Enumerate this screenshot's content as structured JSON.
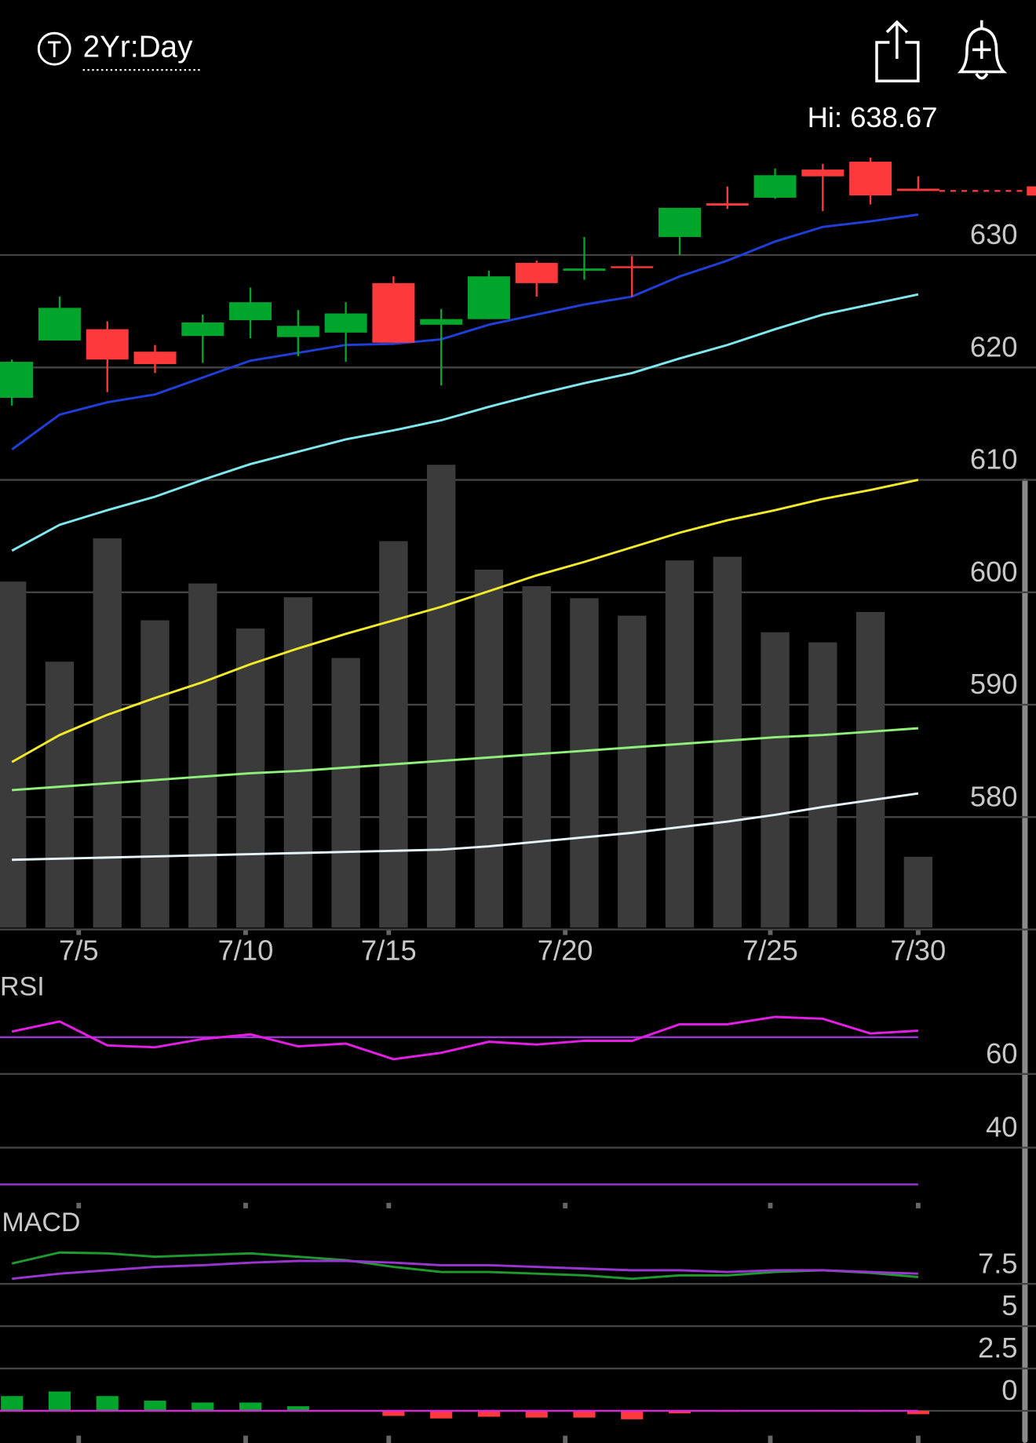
{
  "header": {
    "period": "2Yr:Day"
  },
  "chart_data": [
    {
      "type": "candlestick",
      "annotation": "Hi: 638.67",
      "categories": [
        null,
        null,
        null,
        null,
        null,
        null,
        null,
        null,
        null,
        null,
        null,
        null,
        null,
        null,
        null,
        null,
        null,
        null,
        null,
        null
      ],
      "open": [
        617.3,
        622.4,
        623.4,
        621.4,
        622.8,
        624.2,
        622.7,
        623.1,
        627.5,
        623.8,
        624.3,
        629.3,
        628.6,
        629.0,
        631.6,
        634.6,
        635.1,
        637.6,
        638.3,
        635.9
      ],
      "high": [
        620.7,
        626.3,
        624.1,
        622.0,
        624.7,
        627.1,
        625.1,
        625.8,
        628.1,
        625.2,
        628.6,
        629.5,
        631.6,
        629.9,
        634.2,
        636.1,
        637.7,
        638.1,
        638.67,
        637.0
      ],
      "low": [
        616.6,
        622.4,
        617.8,
        619.5,
        620.4,
        622.6,
        621.0,
        620.5,
        622.2,
        618.4,
        624.3,
        626.3,
        627.8,
        626.3,
        630.0,
        634.1,
        635.0,
        633.9,
        634.5,
        635.7
      ],
      "close": [
        620.5,
        625.3,
        620.7,
        620.3,
        624.0,
        625.8,
        623.7,
        624.8,
        622.2,
        624.3,
        628.1,
        627.5,
        628.8,
        628.9,
        634.2,
        634.4,
        637.1,
        637.0,
        635.3,
        635.7
      ],
      "up_color": "#00a62b",
      "down_color": "#fc3a3c",
      "last_price_line": true,
      "xlim": [
        -0.25,
        21.47
      ],
      "xticks": [
        {
          "value": 1.4,
          "label": "7/5"
        },
        {
          "value": 4.9,
          "label": "7/10"
        },
        {
          "value": 7.9,
          "label": "7/15"
        },
        {
          "value": 11.6,
          "label": "7/20"
        },
        {
          "value": 15.9,
          "label": "7/25"
        },
        {
          "value": 19.0,
          "label": "7/30"
        }
      ],
      "ylim": [
        570,
        644.5
      ],
      "yticks": [
        580,
        590,
        600,
        610,
        620,
        630
      ],
      "grid": true,
      "series": [
        {
          "color": "#1f3fd8",
          "values": [
            612.7,
            615.8,
            616.9,
            617.6,
            619.1,
            620.6,
            621.3,
            622.0,
            622.1,
            622.5,
            623.8,
            624.7,
            625.6,
            626.3,
            628.1,
            629.5,
            631.2,
            632.5,
            633.0,
            633.6
          ]
        },
        {
          "color": "#7fe8ee",
          "values": [
            603.7,
            606.0,
            607.3,
            608.5,
            610.0,
            611.4,
            612.5,
            613.6,
            614.4,
            615.3,
            616.5,
            617.6,
            618.6,
            619.5,
            620.8,
            622.0,
            623.4,
            624.7,
            625.6,
            626.5
          ]
        },
        {
          "color": "#f2e92a",
          "values": [
            584.9,
            587.3,
            589.1,
            590.6,
            592.0,
            593.6,
            595.0,
            596.3,
            597.5,
            598.7,
            600.1,
            601.5,
            602.7,
            604.0,
            605.3,
            606.4,
            607.3,
            608.3,
            609.1,
            610.0
          ]
        },
        {
          "color": "#8ff07a",
          "values": [
            582.4,
            582.7,
            583.0,
            583.3,
            583.6,
            583.9,
            584.1,
            584.4,
            584.7,
            585.0,
            585.3,
            585.6,
            585.9,
            586.2,
            586.5,
            586.8,
            587.1,
            587.3,
            587.6,
            587.9
          ]
        },
        {
          "color": "#e6f4f8",
          "values": [
            576.2,
            576.3,
            576.4,
            576.5,
            576.6,
            576.7,
            576.8,
            576.9,
            577.0,
            577.1,
            577.4,
            577.8,
            578.2,
            578.6,
            579.1,
            579.6,
            580.2,
            580.9,
            581.5,
            582.1
          ]
        }
      ],
      "volume": {
        "color": "#3b3b3b",
        "values": [
          376,
          289,
          423,
          334,
          374,
          325,
          359,
          293,
          420,
          503,
          389,
          371,
          358,
          339,
          399,
          403,
          321,
          310,
          343,
          77
        ]
      }
    },
    {
      "type": "line",
      "title": "RSI",
      "ylim": [
        25,
        87
      ],
      "yticks": [
        40,
        60
      ],
      "grid": true,
      "levels": [
        70,
        30
      ],
      "level_color": "#9a35d2",
      "series": [
        {
          "color": "#e41ee6",
          "values": [
            71.5,
            74.25,
            67.75,
            67.25,
            69.5,
            70.75,
            67.5,
            68.25,
            64,
            65.75,
            68.75,
            68,
            69,
            69,
            73.5,
            73.5,
            75.5,
            75,
            71,
            71.75
          ]
        }
      ]
    },
    {
      "type": "macd",
      "title": "MACD",
      "ylim": [
        -1.9,
        11.85
      ],
      "yticks": [
        0,
        2.5,
        5,
        7.5
      ],
      "grid": true,
      "zero_color": "#e41ee6",
      "series": [
        {
          "color": "#1f9a2e",
          "values": [
            8.7,
            9.35,
            9.3,
            9.1,
            9.2,
            9.3,
            9.1,
            8.9,
            8.5,
            8.2,
            8.2,
            8.1,
            8.0,
            7.8,
            8.0,
            8.0,
            8.2,
            8.3,
            8.15,
            7.9
          ]
        },
        {
          "color": "#9a35d2",
          "values": [
            7.8,
            8.1,
            8.3,
            8.5,
            8.6,
            8.75,
            8.85,
            8.85,
            8.75,
            8.6,
            8.6,
            8.5,
            8.4,
            8.3,
            8.3,
            8.2,
            8.3,
            8.3,
            8.2,
            8.1
          ]
        }
      ],
      "histogram": {
        "up_color": "#00a62b",
        "down_color": "#fc3a3c",
        "values": [
          0.87,
          1.14,
          0.87,
          0.6,
          0.49,
          0.49,
          0.27,
          0.05,
          -0.3,
          -0.45,
          -0.35,
          -0.4,
          -0.4,
          -0.5,
          -0.15,
          -0.05,
          0.02,
          0.05,
          -0.02,
          -0.2
        ]
      }
    }
  ]
}
